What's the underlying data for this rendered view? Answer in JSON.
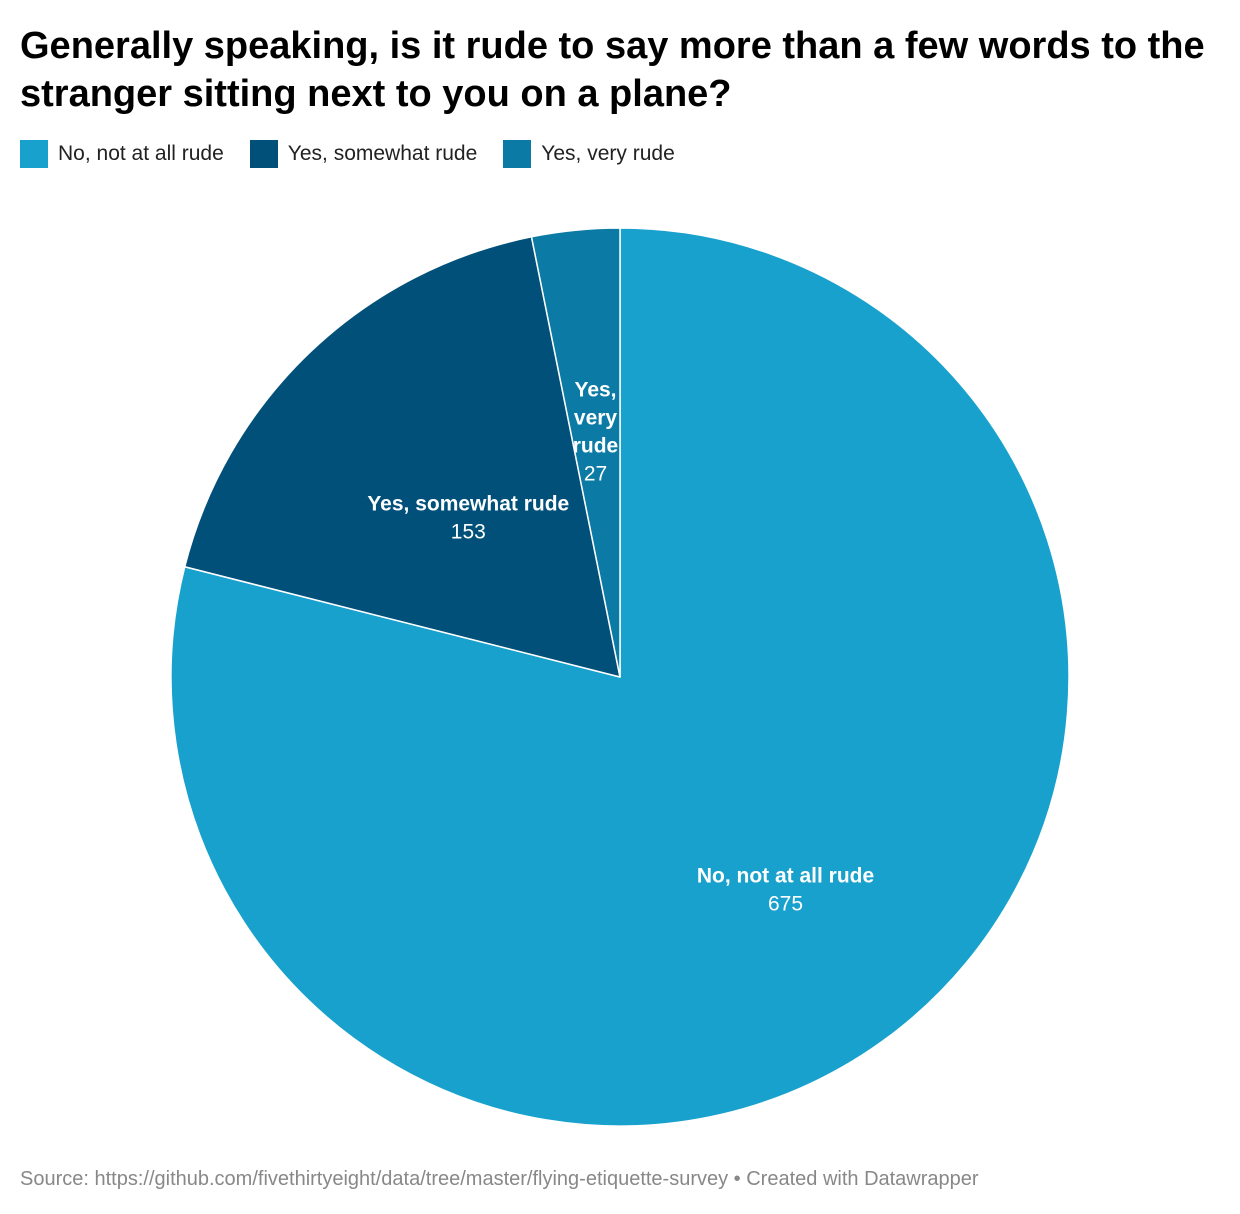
{
  "chart_data": {
    "type": "pie",
    "title": "Generally speaking, is it rude to say more than a few words to the stranger sitting next to you on a plane?",
    "legend_position": "top-left",
    "slices": [
      {
        "label": "No, not at all rude",
        "value": 675,
        "color": "#18a1cd",
        "label_lines": [
          "No, not at all rude"
        ]
      },
      {
        "label": "Yes, somewhat rude",
        "value": 153,
        "color": "#00507a",
        "label_lines": [
          "Yes, somewhat rude"
        ]
      },
      {
        "label": "Yes, very rude",
        "value": 27,
        "color": "#0b7aa5",
        "label_lines": [
          "Yes,",
          "very",
          "rude"
        ]
      }
    ]
  },
  "footer": {
    "source": "Source: https://github.com/fivethirtyeight/data/tree/master/flying-etiquette-survey • Created with Datawrapper"
  }
}
